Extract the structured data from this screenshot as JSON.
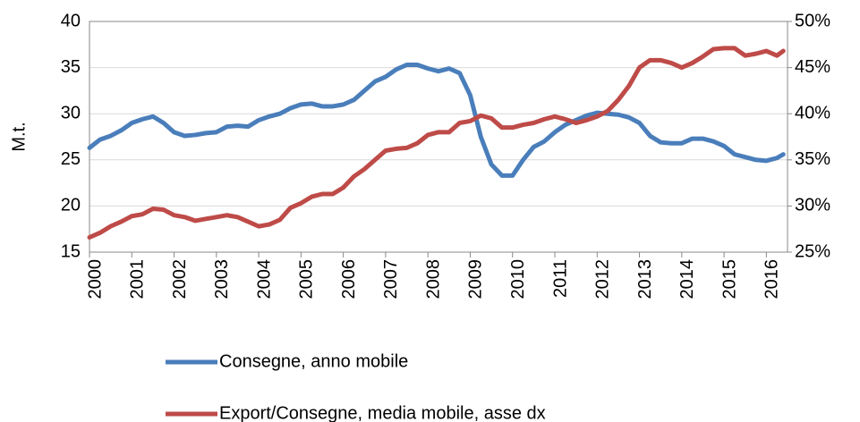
{
  "chart_data": {
    "type": "line",
    "y_label": "M.t.",
    "x": [
      2000,
      2000.25,
      2000.5,
      2000.75,
      2001,
      2001.25,
      2001.5,
      2001.75,
      2002,
      2002.25,
      2002.5,
      2002.75,
      2003,
      2003.25,
      2003.5,
      2003.75,
      2004,
      2004.25,
      2004.5,
      2004.75,
      2005,
      2005.25,
      2005.5,
      2005.75,
      2006,
      2006.25,
      2006.5,
      2006.75,
      2007,
      2007.25,
      2007.5,
      2007.75,
      2008,
      2008.25,
      2008.5,
      2008.75,
      2009,
      2009.25,
      2009.5,
      2009.75,
      2010,
      2010.25,
      2010.5,
      2010.75,
      2011,
      2011.25,
      2011.5,
      2011.75,
      2012,
      2012.25,
      2012.5,
      2012.75,
      2013,
      2013.25,
      2013.5,
      2013.75,
      2014,
      2014.25,
      2014.5,
      2014.75,
      2015,
      2015.25,
      2015.5,
      2015.75,
      2016,
      2016.25,
      2016.4
    ],
    "series": [
      {
        "name": "Consegne, anno mobile",
        "color": "#4a7ebb",
        "axis": "y",
        "values": [
          26.3,
          27.2,
          27.6,
          28.2,
          29.0,
          29.4,
          29.7,
          29.0,
          28.0,
          27.6,
          27.7,
          27.9,
          28.0,
          28.6,
          28.7,
          28.6,
          29.3,
          29.7,
          30.0,
          30.6,
          31.0,
          31.1,
          30.8,
          30.8,
          31.0,
          31.5,
          32.5,
          33.5,
          34.0,
          34.8,
          35.3,
          35.3,
          34.9,
          34.6,
          34.9,
          34.4,
          32.0,
          27.5,
          24.5,
          23.3,
          23.3,
          25.0,
          26.4,
          27.0,
          28.0,
          28.8,
          29.3,
          29.8,
          30.1,
          30.0,
          29.9,
          29.6,
          29.0,
          27.6,
          26.9,
          26.8,
          26.8,
          27.3,
          27.3,
          27.0,
          26.5,
          25.6,
          25.3,
          25.0,
          24.9,
          25.2,
          25.6
        ]
      },
      {
        "name": "Export/Consegne, media mobile, asse dx",
        "color": "#be4b48",
        "axis": "y2",
        "values": [
          26.6,
          27.1,
          27.8,
          28.3,
          28.9,
          29.1,
          29.7,
          29.6,
          29.0,
          28.8,
          28.4,
          28.6,
          28.8,
          29.0,
          28.8,
          28.3,
          27.8,
          28.0,
          28.5,
          29.8,
          30.3,
          31.0,
          31.3,
          31.3,
          32.0,
          33.2,
          34.0,
          35.0,
          36.0,
          36.2,
          36.3,
          36.8,
          37.7,
          38.0,
          38.0,
          39.0,
          39.2,
          39.8,
          39.5,
          38.5,
          38.5,
          38.8,
          39.0,
          39.4,
          39.7,
          39.4,
          39.0,
          39.3,
          39.7,
          40.3,
          41.5,
          43.0,
          45.0,
          45.8,
          45.8,
          45.5,
          45.0,
          45.5,
          46.2,
          47.0,
          47.1,
          47.1,
          46.3,
          46.5,
          46.8,
          46.3,
          46.8
        ]
      }
    ],
    "xlim": [
      2000,
      2016.5
    ],
    "xticks": [
      2000,
      2001,
      2002,
      2003,
      2004,
      2005,
      2006,
      2007,
      2008,
      2009,
      2010,
      2011,
      2012,
      2013,
      2014,
      2015,
      2016
    ],
    "ylim": [
      15,
      40
    ],
    "yticks": [
      15,
      20,
      25,
      30,
      35,
      40
    ],
    "y2lim": [
      25,
      50
    ],
    "y2ticks": [
      {
        "value": 25,
        "label": "25%"
      },
      {
        "value": 30,
        "label": "30%"
      },
      {
        "value": 35,
        "label": "35%"
      },
      {
        "value": 40,
        "label": "40%"
      },
      {
        "value": 45,
        "label": "45%"
      },
      {
        "value": 50,
        "label": "50%"
      }
    ],
    "grid": true,
    "legend": "bottom"
  }
}
